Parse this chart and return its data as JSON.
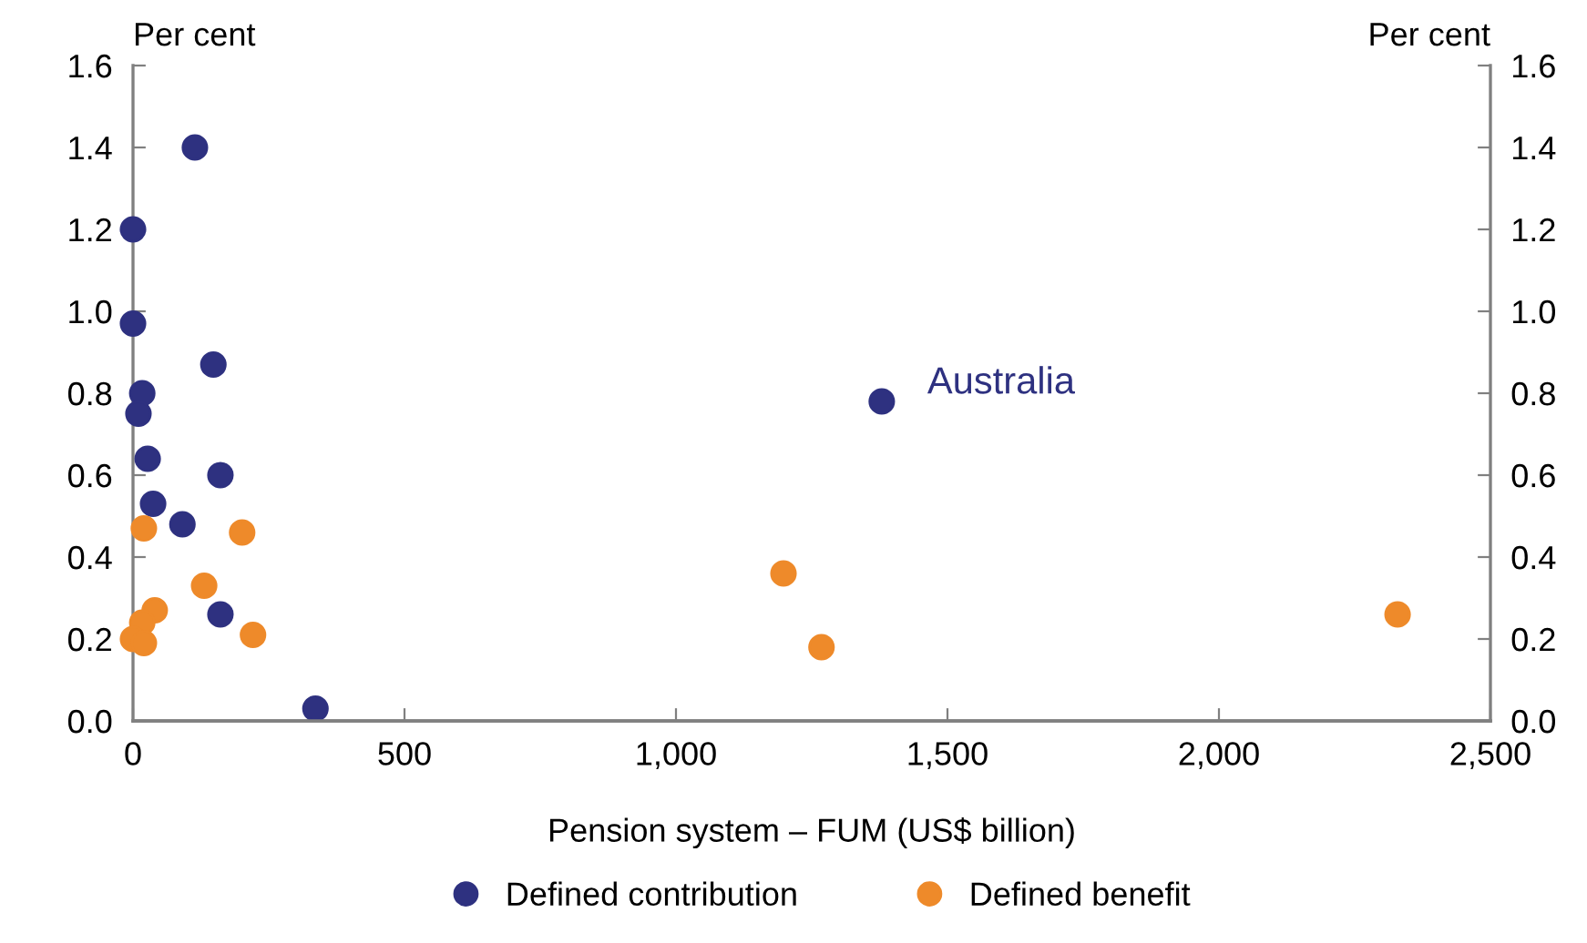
{
  "chart_data": {
    "type": "scatter",
    "xlabel": "Pension system – FUM (US$ billion)",
    "ylabel": "Per cent",
    "y2label": "Per cent",
    "xlim": [
      0,
      2500
    ],
    "xticks": [
      {
        "value": 0,
        "label": "0"
      },
      {
        "value": 500,
        "label": "500"
      },
      {
        "value": 1000,
        "label": "1,000"
      },
      {
        "value": 1500,
        "label": "1,500"
      },
      {
        "value": 2000,
        "label": "2,000"
      },
      {
        "value": 2500,
        "label": "2,500"
      }
    ],
    "ylim": [
      0,
      1.6
    ],
    "yticks": [
      {
        "value": 0,
        "label": "0.0"
      },
      {
        "value": 0.2,
        "label": "0.2"
      },
      {
        "value": 0.4,
        "label": "0.4"
      },
      {
        "value": 0.6,
        "label": "0.6"
      },
      {
        "value": 0.8,
        "label": "0.8"
      },
      {
        "value": 1.0,
        "label": "1.0"
      },
      {
        "value": 1.2,
        "label": "1.2"
      },
      {
        "value": 1.4,
        "label": "1.4"
      },
      {
        "value": 1.6,
        "label": "1.6"
      }
    ],
    "y2lim": [
      0,
      1.6
    ],
    "y2ticks": [
      {
        "value": 0,
        "label": "0.0"
      },
      {
        "value": 0.2,
        "label": "0.2"
      },
      {
        "value": 0.4,
        "label": "0.4"
      },
      {
        "value": 0.6,
        "label": "0.6"
      },
      {
        "value": 0.8,
        "label": "0.8"
      },
      {
        "value": 1.0,
        "label": "1.0"
      },
      {
        "value": 1.2,
        "label": "1.2"
      },
      {
        "value": 1.4,
        "label": "1.4"
      },
      {
        "value": 1.6,
        "label": "1.6"
      }
    ],
    "grid": false,
    "legend": "bottom",
    "marker": "circle",
    "series": [
      {
        "name": "Defined contribution",
        "color": "#2e3180",
        "x": [
          114,
          0,
          0,
          148,
          17,
          10,
          27,
          161,
          37,
          91,
          161,
          336,
          1379
        ],
        "values": [
          1.4,
          1.2,
          0.97,
          0.87,
          0.8,
          0.75,
          0.64,
          0.6,
          0.53,
          0.48,
          0.26,
          0.03,
          0.78
        ]
      },
      {
        "name": "Defined benefit",
        "color": "#ee8a2a",
        "x": [
          20,
          201,
          131,
          40,
          17,
          0,
          20,
          221,
          1198,
          1268,
          2329
        ],
        "values": [
          0.47,
          0.46,
          0.33,
          0.27,
          0.24,
          0.2,
          0.19,
          0.21,
          0.36,
          0.18,
          0.26
        ]
      }
    ],
    "annotations": [
      {
        "text": "Australia",
        "x": 1379,
        "y": 0.78
      }
    ]
  }
}
